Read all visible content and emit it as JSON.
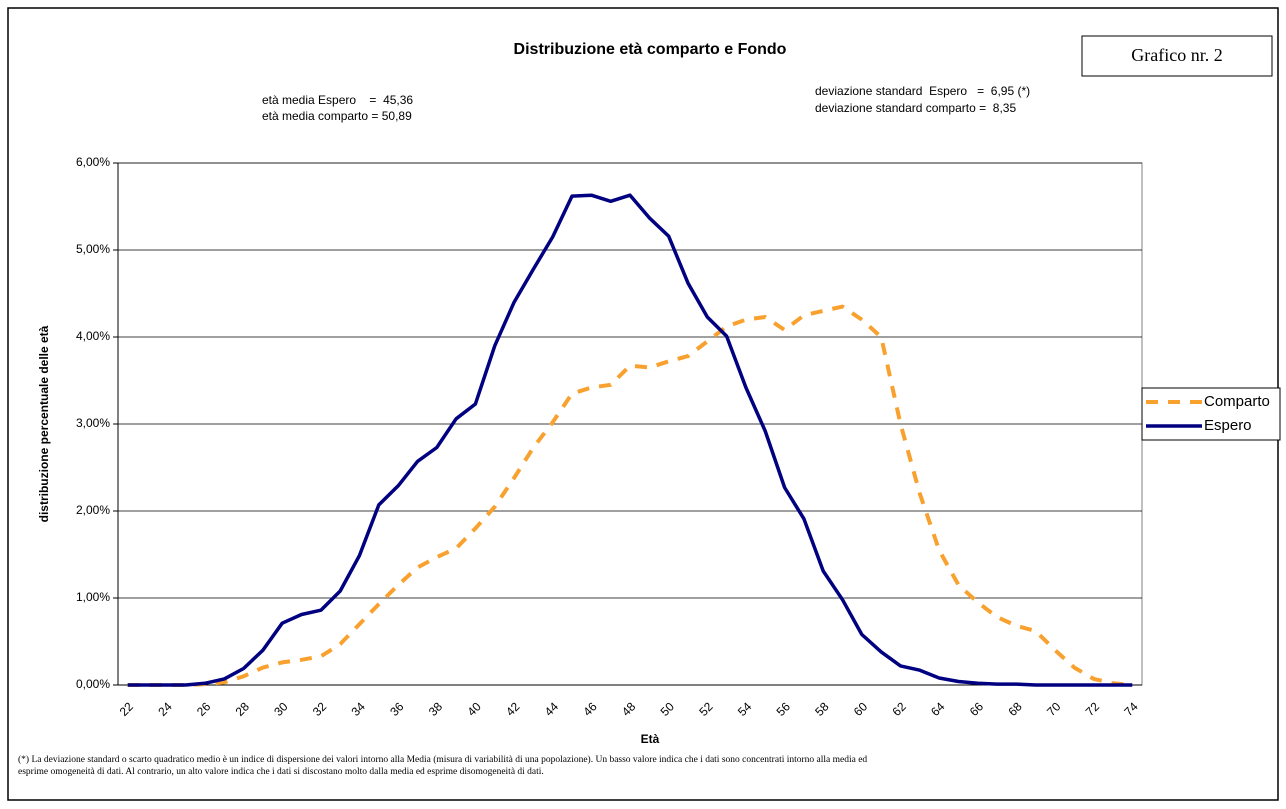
{
  "chart_data": {
    "type": "line",
    "title": "Distribuzione età comparto e Fondo",
    "badge": "Grafico nr. 2",
    "annotations": [
      "età media Espero    =  45,36",
      "età media comparto = 50,89",
      "deviazione standard  Espero   =  6,95 (*)",
      "deviazione standard comparto =  8,35"
    ],
    "footnote": [
      "(*) La deviazione standard o scarto quadratico medio è un indice di dispersione dei valori intorno alla Media (misura di variabilità di una popolazione). Un basso valore indica che i dati sono concentrati intorno alla media ed",
      "esprime omogeneità di dati. Al contrario, un alto valore indica che i dati si discostano molto dalla media ed esprime disomogeneità di dati."
    ],
    "x_label": "Età",
    "y_label": "distribuzione percentuale delle età",
    "categories": [
      "22",
      null,
      "24",
      null,
      "26",
      null,
      "28",
      null,
      "30",
      null,
      "32",
      null,
      "34",
      null,
      "36",
      null,
      "38",
      null,
      "40",
      null,
      "42",
      null,
      "44",
      null,
      "46",
      null,
      "48",
      null,
      "50",
      null,
      "52",
      null,
      "54",
      null,
      "56",
      null,
      "58",
      null,
      "60",
      null,
      "62",
      null,
      "64",
      null,
      "66",
      null,
      "68",
      null,
      "70",
      null,
      "72",
      null,
      "74"
    ],
    "ylim": [
      0,
      6
    ],
    "yticks": [
      {
        "value": 0,
        "label": "0,00%"
      },
      {
        "value": 1,
        "label": "1,00%"
      },
      {
        "value": 2,
        "label": "2,00%"
      },
      {
        "value": 3,
        "label": "3,00%"
      },
      {
        "value": 4,
        "label": "4,00%"
      },
      {
        "value": 5,
        "label": "5,00%"
      },
      {
        "value": 6,
        "label": "6,00%"
      }
    ],
    "grid": true,
    "legend": "right",
    "series": [
      {
        "name": "Comparto",
        "color": "#f9a12e",
        "dashed": true,
        "values": [
          0,
          0,
          0,
          0,
          0.01,
          0.03,
          0.1,
          0.2,
          0.26,
          0.29,
          0.33,
          0.47,
          0.7,
          0.93,
          1.15,
          1.35,
          1.47,
          1.57,
          1.8,
          2.05,
          2.38,
          2.73,
          3.02,
          3.35,
          3.42,
          3.45,
          3.67,
          3.65,
          3.72,
          3.78,
          3.95,
          4.12,
          4.2,
          4.23,
          4.08,
          4.25,
          4.3,
          4.35,
          4.2,
          4.0,
          3.0,
          2.2,
          1.55,
          1.15,
          0.95,
          0.78,
          0.68,
          0.62,
          0.4,
          0.2,
          0.07,
          0.02,
          0
        ]
      },
      {
        "name": "Espero",
        "color": "#000080",
        "dashed": false,
        "values": [
          0,
          0,
          0,
          0,
          0.02,
          0.07,
          0.19,
          0.4,
          0.71,
          0.81,
          0.86,
          1.08,
          1.49,
          2.07,
          2.29,
          2.57,
          2.73,
          3.06,
          3.23,
          3.9,
          4.4,
          4.78,
          5.15,
          5.62,
          5.63,
          5.56,
          5.63,
          5.37,
          5.16,
          4.62,
          4.23,
          4.01,
          3.42,
          2.92,
          2.27,
          1.91,
          1.31,
          0.98,
          0.58,
          0.38,
          0.22,
          0.17,
          0.08,
          0.04,
          0.02,
          0.01,
          0.01,
          0,
          0,
          0,
          0,
          0,
          0
        ]
      }
    ]
  }
}
